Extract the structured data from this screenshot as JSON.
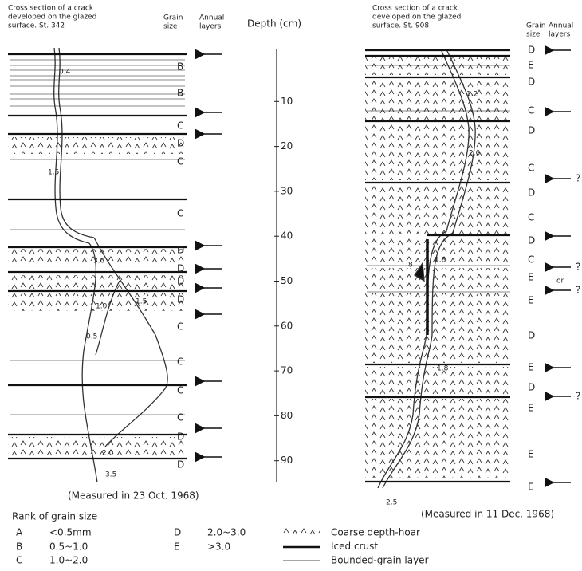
{
  "left": {
    "title": [
      "Cross section of a crack",
      "developed on the glazed",
      "surface. St. 342"
    ],
    "grain_header": [
      "Grain",
      "size"
    ],
    "annual_header": [
      "Annual",
      "layers"
    ],
    "grain_sizes": [
      "B",
      "B",
      "C",
      "D",
      "C",
      "C",
      "D",
      "D",
      "D",
      "D",
      "C",
      "C",
      "C",
      "C",
      "D",
      "D"
    ],
    "crack_widths": [
      "0.4",
      "1.5",
      "3.0",
      "1.0",
      "1.5",
      "0.5",
      "2.0",
      "3.5"
    ],
    "caption": "(Measured in 23 Oct. 1968)"
  },
  "depth_axis": {
    "label": "Depth (cm)",
    "ticks": [
      10,
      20,
      30,
      40,
      50,
      60,
      70,
      80,
      90
    ]
  },
  "right": {
    "title": [
      "Cross section of a crack",
      "developed on the glazed",
      "surface. St. 908"
    ],
    "grain_header": [
      "Grain",
      "size"
    ],
    "annual_header": [
      "Annual",
      "layers"
    ],
    "grain_sizes": [
      "D",
      "E",
      "D",
      "C",
      "D",
      "C",
      "D",
      "C",
      "D",
      "C",
      "E",
      "E",
      "D",
      "E",
      "D",
      "E",
      "E",
      "E"
    ],
    "annual_notes": [
      "?",
      "?",
      "or",
      "?",
      "?"
    ],
    "crack_widths": [
      "1.2",
      "2.0",
      "1.8",
      "8",
      "1.8",
      "2.5"
    ],
    "caption": "(Measured in 11 Dec. 1968)"
  },
  "legend": {
    "title": "Rank of grain size",
    "ranks": [
      {
        "rank": "A",
        "range": "<0.5mm"
      },
      {
        "rank": "B",
        "range": "0.5~1.0"
      },
      {
        "rank": "C",
        "range": "1.0~2.0"
      },
      {
        "rank": "D",
        "range": "2.0~3.0"
      },
      {
        "rank": "E",
        "range": ">3.0"
      }
    ],
    "symbols": [
      "Coarse depth-hoar",
      "Iced crust",
      "Bounded-grain layer"
    ]
  }
}
